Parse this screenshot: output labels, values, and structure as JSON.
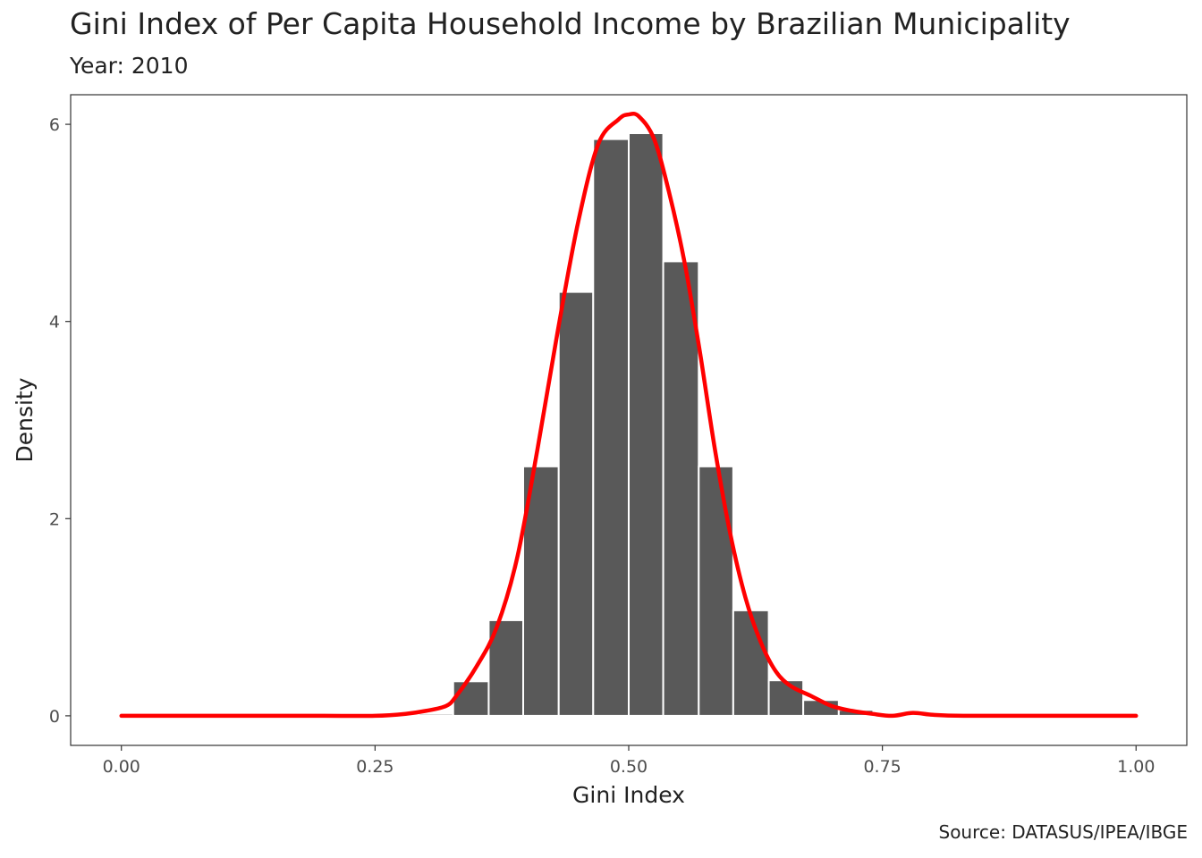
{
  "chart_data": {
    "type": "bar",
    "title": "Gini Index of Per Capita Household Income by Brazilian Municipality",
    "subtitle": "Year: 2010",
    "xlabel": "Gini Index",
    "ylabel": "Density",
    "caption": "Source: DATASUS/IPEA/IBGE",
    "xlim": [
      -0.05,
      1.05
    ],
    "ylim": [
      -0.3,
      6.3
    ],
    "x_ticks": [
      0,
      0.25,
      0.5,
      0.75,
      1.0
    ],
    "x_tick_labels": [
      "0.00",
      "0.25",
      "0.50",
      "0.75",
      "1.00"
    ],
    "y_ticks": [
      0,
      2,
      4,
      6
    ],
    "y_tick_labels": [
      "0",
      "2",
      "4",
      "6"
    ],
    "grid": false,
    "histogram": {
      "bin_width": 0.0345,
      "bins": [
        {
          "x0": 0.293,
          "x1": 0.327,
          "density": 0.02
        },
        {
          "x0": 0.327,
          "x1": 0.362,
          "density": 0.35
        },
        {
          "x0": 0.362,
          "x1": 0.396,
          "density": 0.97
        },
        {
          "x0": 0.396,
          "x1": 0.431,
          "density": 2.53
        },
        {
          "x0": 0.431,
          "x1": 0.465,
          "density": 4.3
        },
        {
          "x0": 0.465,
          "x1": 0.5,
          "density": 5.85
        },
        {
          "x0": 0.5,
          "x1": 0.534,
          "density": 5.91
        },
        {
          "x0": 0.534,
          "x1": 0.569,
          "density": 4.61
        },
        {
          "x0": 0.569,
          "x1": 0.603,
          "density": 2.53
        },
        {
          "x0": 0.603,
          "x1": 0.638,
          "density": 1.07
        },
        {
          "x0": 0.638,
          "x1": 0.672,
          "density": 0.36
        },
        {
          "x0": 0.672,
          "x1": 0.707,
          "density": 0.16
        },
        {
          "x0": 0.707,
          "x1": 0.741,
          "density": 0.06
        }
      ],
      "bar_color": "#595959",
      "outline_color": "#ffffff"
    },
    "density_curve": {
      "color": "#ff0000",
      "x": [
        0.0,
        0.1,
        0.2,
        0.25,
        0.28,
        0.3,
        0.32,
        0.33,
        0.35,
        0.37,
        0.39,
        0.41,
        0.43,
        0.45,
        0.47,
        0.49,
        0.5,
        0.51,
        0.525,
        0.54,
        0.555,
        0.57,
        0.585,
        0.6,
        0.615,
        0.63,
        0.645,
        0.66,
        0.68,
        0.7,
        0.72,
        0.74,
        0.76,
        0.78,
        0.8,
        0.83,
        0.9,
        1.0
      ],
      "y": [
        0.0,
        0.0,
        0.0,
        0.0,
        0.02,
        0.05,
        0.1,
        0.2,
        0.5,
        0.9,
        1.6,
        2.7,
        3.9,
        5.0,
        5.8,
        6.05,
        6.1,
        6.08,
        5.85,
        5.3,
        4.6,
        3.7,
        2.7,
        1.85,
        1.2,
        0.75,
        0.45,
        0.3,
        0.2,
        0.1,
        0.05,
        0.02,
        0.0,
        0.03,
        0.01,
        0.0,
        0.0,
        0.0
      ]
    }
  }
}
